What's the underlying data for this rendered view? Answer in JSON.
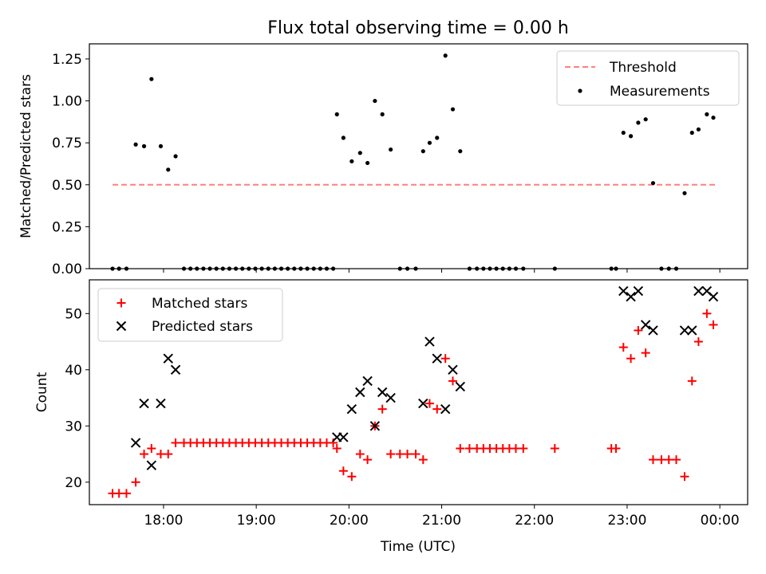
{
  "title": "Flux total observing time = 0.00 h",
  "chart_data": [
    {
      "type": "scatter",
      "ylabel": "Matched/Predicted stars",
      "ylim": [
        0,
        1.34
      ],
      "yticks": [
        "0.00",
        "0.25",
        "0.50",
        "0.75",
        "1.00",
        "1.25"
      ],
      "ytick_values": [
        0,
        0.25,
        0.5,
        0.75,
        1.0,
        1.25
      ],
      "xlim": [
        17.2,
        24.3
      ],
      "legend": {
        "placement": "top-right",
        "threshold_label": "Threshold",
        "measurements_label": "Measurements"
      },
      "threshold": {
        "value": 0.5,
        "x_start": 17.45,
        "x_end": 23.95,
        "color": "#ff7f7f"
      },
      "measurements": {
        "color": "#000000",
        "points": [
          [
            17.45,
            0
          ],
          [
            17.52,
            0
          ],
          [
            17.6,
            0
          ],
          [
            17.7,
            0.74
          ],
          [
            17.79,
            0.73
          ],
          [
            17.87,
            1.13
          ],
          [
            17.97,
            0.73
          ],
          [
            18.05,
            0.59
          ],
          [
            18.13,
            0.67
          ],
          [
            18.22,
            0
          ],
          [
            18.29,
            0
          ],
          [
            18.36,
            0
          ],
          [
            18.43,
            0
          ],
          [
            18.5,
            0
          ],
          [
            18.57,
            0
          ],
          [
            18.64,
            0
          ],
          [
            18.71,
            0
          ],
          [
            18.78,
            0
          ],
          [
            18.85,
            0
          ],
          [
            18.92,
            0
          ],
          [
            18.99,
            0
          ],
          [
            19.06,
            0
          ],
          [
            19.13,
            0
          ],
          [
            19.2,
            0
          ],
          [
            19.27,
            0
          ],
          [
            19.34,
            0
          ],
          [
            19.41,
            0
          ],
          [
            19.48,
            0
          ],
          [
            19.55,
            0
          ],
          [
            19.62,
            0
          ],
          [
            19.69,
            0
          ],
          [
            19.76,
            0
          ],
          [
            19.83,
            0
          ],
          [
            19.87,
            0.92
          ],
          [
            19.94,
            0.78
          ],
          [
            20.03,
            0.64
          ],
          [
            20.12,
            0.69
          ],
          [
            20.2,
            0.63
          ],
          [
            20.28,
            1.0
          ],
          [
            20.36,
            0.92
          ],
          [
            20.45,
            0.71
          ],
          [
            20.55,
            0
          ],
          [
            20.63,
            0
          ],
          [
            20.72,
            0
          ],
          [
            20.8,
            0.7
          ],
          [
            20.87,
            0.75
          ],
          [
            20.95,
            0.78
          ],
          [
            21.04,
            1.27
          ],
          [
            21.12,
            0.95
          ],
          [
            21.2,
            0.7
          ],
          [
            21.3,
            0
          ],
          [
            21.38,
            0
          ],
          [
            21.45,
            0
          ],
          [
            21.52,
            0
          ],
          [
            21.59,
            0
          ],
          [
            21.66,
            0
          ],
          [
            21.73,
            0
          ],
          [
            21.8,
            0
          ],
          [
            21.88,
            0
          ],
          [
            22.22,
            0
          ],
          [
            22.83,
            0
          ],
          [
            22.88,
            0
          ],
          [
            22.96,
            0.81
          ],
          [
            23.04,
            0.79
          ],
          [
            23.12,
            0.87
          ],
          [
            23.2,
            0.89
          ],
          [
            23.28,
            0.51
          ],
          [
            23.37,
            0
          ],
          [
            23.45,
            0
          ],
          [
            23.53,
            0
          ],
          [
            23.62,
            0.45
          ],
          [
            23.7,
            0.81
          ],
          [
            23.77,
            0.83
          ],
          [
            23.86,
            0.92
          ],
          [
            23.93,
            0.9
          ]
        ]
      }
    },
    {
      "type": "scatter",
      "xlabel": "Time (UTC)",
      "ylabel": "Count",
      "ylim": [
        16,
        56
      ],
      "yticks": [
        "20",
        "30",
        "40",
        "50"
      ],
      "ytick_values": [
        20,
        30,
        40,
        50
      ],
      "xlim": [
        17.2,
        24.3
      ],
      "xticks": [
        "18:00",
        "19:00",
        "20:00",
        "21:00",
        "22:00",
        "23:00",
        "00:00"
      ],
      "xtick_values": [
        18,
        19,
        20,
        21,
        22,
        23,
        24
      ],
      "legend": {
        "placement": "top-left"
      },
      "series": [
        {
          "name": "Matched stars",
          "marker": "plus",
          "color": "#ff0000",
          "points": [
            [
              17.45,
              18
            ],
            [
              17.52,
              18
            ],
            [
              17.6,
              18
            ],
            [
              17.7,
              20
            ],
            [
              17.79,
              25
            ],
            [
              17.87,
              26
            ],
            [
              17.97,
              25
            ],
            [
              18.05,
              25
            ],
            [
              18.13,
              27
            ],
            [
              18.22,
              27
            ],
            [
              18.29,
              27
            ],
            [
              18.36,
              27
            ],
            [
              18.43,
              27
            ],
            [
              18.5,
              27
            ],
            [
              18.57,
              27
            ],
            [
              18.64,
              27
            ],
            [
              18.71,
              27
            ],
            [
              18.78,
              27
            ],
            [
              18.85,
              27
            ],
            [
              18.92,
              27
            ],
            [
              18.99,
              27
            ],
            [
              19.06,
              27
            ],
            [
              19.13,
              27
            ],
            [
              19.2,
              27
            ],
            [
              19.27,
              27
            ],
            [
              19.34,
              27
            ],
            [
              19.41,
              27
            ],
            [
              19.48,
              27
            ],
            [
              19.55,
              27
            ],
            [
              19.62,
              27
            ],
            [
              19.69,
              27
            ],
            [
              19.76,
              27
            ],
            [
              19.83,
              27
            ],
            [
              19.87,
              26
            ],
            [
              19.94,
              22
            ],
            [
              20.03,
              21
            ],
            [
              20.12,
              25
            ],
            [
              20.2,
              24
            ],
            [
              20.28,
              30
            ],
            [
              20.36,
              33
            ],
            [
              20.45,
              25
            ],
            [
              20.55,
              25
            ],
            [
              20.63,
              25
            ],
            [
              20.72,
              25
            ],
            [
              20.8,
              24
            ],
            [
              20.87,
              34
            ],
            [
              20.95,
              33
            ],
            [
              21.04,
              42
            ],
            [
              21.12,
              38
            ],
            [
              21.2,
              26
            ],
            [
              21.3,
              26
            ],
            [
              21.38,
              26
            ],
            [
              21.45,
              26
            ],
            [
              21.52,
              26
            ],
            [
              21.59,
              26
            ],
            [
              21.66,
              26
            ],
            [
              21.73,
              26
            ],
            [
              21.8,
              26
            ],
            [
              21.88,
              26
            ],
            [
              22.22,
              26
            ],
            [
              22.83,
              26
            ],
            [
              22.88,
              26
            ],
            [
              22.96,
              44
            ],
            [
              23.04,
              42
            ],
            [
              23.12,
              47
            ],
            [
              23.2,
              43
            ],
            [
              23.28,
              24
            ],
            [
              23.37,
              24
            ],
            [
              23.45,
              24
            ],
            [
              23.53,
              24
            ],
            [
              23.62,
              21
            ],
            [
              23.7,
              38
            ],
            [
              23.77,
              45
            ],
            [
              23.86,
              50
            ],
            [
              23.93,
              48
            ]
          ]
        },
        {
          "name": "Predicted stars",
          "marker": "x",
          "color": "#000000",
          "points": [
            [
              17.7,
              27
            ],
            [
              17.79,
              34
            ],
            [
              17.87,
              23
            ],
            [
              17.97,
              34
            ],
            [
              18.05,
              42
            ],
            [
              18.13,
              40
            ],
            [
              19.87,
              28
            ],
            [
              19.94,
              28
            ],
            [
              20.03,
              33
            ],
            [
              20.12,
              36
            ],
            [
              20.2,
              38
            ],
            [
              20.28,
              30
            ],
            [
              20.36,
              36
            ],
            [
              20.45,
              35
            ],
            [
              20.8,
              34
            ],
            [
              20.87,
              45
            ],
            [
              20.95,
              42
            ],
            [
              21.04,
              33
            ],
            [
              21.12,
              40
            ],
            [
              21.2,
              37
            ],
            [
              22.96,
              54
            ],
            [
              23.04,
              53
            ],
            [
              23.12,
              54
            ],
            [
              23.2,
              48
            ],
            [
              23.28,
              47
            ],
            [
              23.62,
              47
            ],
            [
              23.7,
              47
            ],
            [
              23.77,
              54
            ],
            [
              23.86,
              54
            ],
            [
              23.93,
              53
            ]
          ]
        }
      ]
    }
  ]
}
